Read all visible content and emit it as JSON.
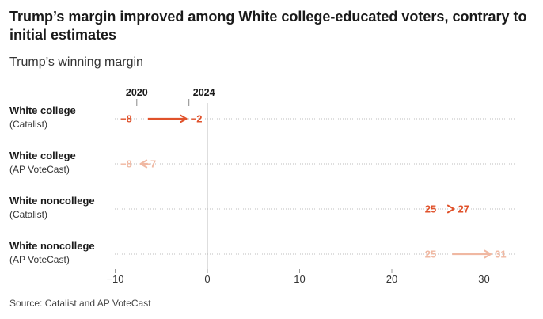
{
  "title": "Trump’s margin improved among White college-educated voters, contrary to initial estimates",
  "subtitle": "Trump’s winning margin",
  "source": "Source: Catalist and AP VoteCast",
  "colors": {
    "strong": "#e0522b",
    "light": "#f0b8a2",
    "grid": "#bdbdbd",
    "zero": "#bcbcbc"
  },
  "chart_data": {
    "type": "dot-arrow",
    "xlim": [
      -11,
      36
    ],
    "xticks": [
      -10,
      0,
      10,
      20,
      30
    ],
    "xtick_labels": [
      "−10",
      "0",
      "10",
      "20",
      "30"
    ],
    "legend": {
      "start_label": "2020",
      "end_label": "2024",
      "start_value": -8,
      "end_value": -2
    },
    "rows": [
      {
        "label": "White college",
        "sub": "(Catalist)",
        "from": -8,
        "to": -2,
        "from_label": "−8",
        "to_label": "−2",
        "style": "strong"
      },
      {
        "label": "White college",
        "sub": "(AP VoteCast)",
        "from": -8,
        "to": -7,
        "from_label": "−8",
        "to_label": "−7",
        "style": "light"
      },
      {
        "label": "White noncollege",
        "sub": "(Catalist)",
        "from": 25,
        "to": 27,
        "from_label": "25",
        "to_label": "27",
        "style": "strong"
      },
      {
        "label": "White noncollege",
        "sub": "(AP VoteCast)",
        "from": 25,
        "to": 31,
        "from_label": "25",
        "to_label": "31",
        "style": "light"
      }
    ]
  }
}
